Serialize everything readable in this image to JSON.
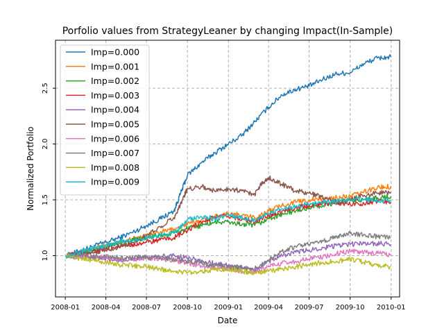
{
  "chart_data": {
    "type": "line",
    "title": "Porfolio values from StrategyLeaner by changing Impact(In-Sample)",
    "xlabel": "Date",
    "ylabel": "Normalized Portfolio",
    "xlim": [
      "2007-12-10",
      "2010-01-20"
    ],
    "ylim": [
      0.63,
      2.93
    ],
    "x_ticks": [
      {
        "date": "2008-01-01",
        "label": "2008-01"
      },
      {
        "date": "2008-04-01",
        "label": "2008-04"
      },
      {
        "date": "2008-07-01",
        "label": "2008-07"
      },
      {
        "date": "2008-10-01",
        "label": "2008-10"
      },
      {
        "date": "2009-01-01",
        "label": "2009-01"
      },
      {
        "date": "2009-04-01",
        "label": "2009-04"
      },
      {
        "date": "2009-07-01",
        "label": "2009-07"
      },
      {
        "date": "2009-10-01",
        "label": "2009-10"
      },
      {
        "date": "2010-01-01",
        "label": "2010-01"
      }
    ],
    "y_ticks": [
      {
        "value": 1.0,
        "label": "1.0"
      },
      {
        "value": 1.5,
        "label": "1.5"
      },
      {
        "value": 2.0,
        "label": "2.0"
      },
      {
        "value": 2.5,
        "label": "2.5"
      }
    ],
    "grid": true,
    "legend_position": "top-left",
    "series": [
      {
        "name": "Imp=0.000",
        "color": "#1f77b4",
        "points": [
          [
            "2008-01-02",
            1.0
          ],
          [
            "2008-02-01",
            1.04
          ],
          [
            "2008-03-01",
            1.08
          ],
          [
            "2008-04-01",
            1.12
          ],
          [
            "2008-05-01",
            1.16
          ],
          [
            "2008-06-01",
            1.21
          ],
          [
            "2008-07-01",
            1.27
          ],
          [
            "2008-08-01",
            1.33
          ],
          [
            "2008-09-01",
            1.4
          ],
          [
            "2008-09-15",
            1.55
          ],
          [
            "2008-10-01",
            1.72
          ],
          [
            "2008-11-01",
            1.83
          ],
          [
            "2008-12-01",
            1.92
          ],
          [
            "2009-01-01",
            2.0
          ],
          [
            "2009-02-01",
            2.08
          ],
          [
            "2009-03-01",
            2.2
          ],
          [
            "2009-04-01",
            2.33
          ],
          [
            "2009-05-01",
            2.44
          ],
          [
            "2009-06-01",
            2.49
          ],
          [
            "2009-07-01",
            2.52
          ],
          [
            "2009-08-01",
            2.58
          ],
          [
            "2009-09-01",
            2.63
          ],
          [
            "2009-10-01",
            2.64
          ],
          [
            "2009-11-01",
            2.72
          ],
          [
            "2009-12-01",
            2.77
          ],
          [
            "2009-12-31",
            2.78
          ]
        ]
      },
      {
        "name": "Imp=0.001",
        "color": "#ff7f0e",
        "points": [
          [
            "2008-01-02",
            1.0
          ],
          [
            "2008-02-01",
            1.03
          ],
          [
            "2008-03-01",
            1.06
          ],
          [
            "2008-04-01",
            1.09
          ],
          [
            "2008-05-01",
            1.12
          ],
          [
            "2008-06-01",
            1.15
          ],
          [
            "2008-07-01",
            1.18
          ],
          [
            "2008-08-01",
            1.21
          ],
          [
            "2008-09-01",
            1.24
          ],
          [
            "2008-10-01",
            1.28
          ],
          [
            "2008-11-01",
            1.32
          ],
          [
            "2008-12-01",
            1.35
          ],
          [
            "2009-01-01",
            1.38
          ],
          [
            "2009-02-01",
            1.36
          ],
          [
            "2009-03-01",
            1.34
          ],
          [
            "2009-04-01",
            1.4
          ],
          [
            "2009-05-01",
            1.45
          ],
          [
            "2009-06-01",
            1.48
          ],
          [
            "2009-07-01",
            1.5
          ],
          [
            "2009-08-01",
            1.51
          ],
          [
            "2009-09-01",
            1.52
          ],
          [
            "2009-10-01",
            1.53
          ],
          [
            "2009-11-01",
            1.57
          ],
          [
            "2009-12-01",
            1.61
          ],
          [
            "2009-12-31",
            1.62
          ]
        ]
      },
      {
        "name": "Imp=0.002",
        "color": "#2ca02c",
        "points": [
          [
            "2008-01-02",
            1.0
          ],
          [
            "2008-02-01",
            1.02
          ],
          [
            "2008-03-01",
            1.05
          ],
          [
            "2008-04-01",
            1.08
          ],
          [
            "2008-05-01",
            1.11
          ],
          [
            "2008-06-01",
            1.14
          ],
          [
            "2008-07-01",
            1.16
          ],
          [
            "2008-08-01",
            1.18
          ],
          [
            "2008-09-01",
            1.2
          ],
          [
            "2008-10-01",
            1.24
          ],
          [
            "2008-11-01",
            1.27
          ],
          [
            "2008-12-01",
            1.3
          ],
          [
            "2009-01-01",
            1.3
          ],
          [
            "2009-02-01",
            1.28
          ],
          [
            "2009-03-01",
            1.27
          ],
          [
            "2009-04-01",
            1.33
          ],
          [
            "2009-05-01",
            1.37
          ],
          [
            "2009-06-01",
            1.4
          ],
          [
            "2009-07-01",
            1.43
          ],
          [
            "2009-08-01",
            1.45
          ],
          [
            "2009-09-01",
            1.47
          ],
          [
            "2009-10-01",
            1.49
          ],
          [
            "2009-11-01",
            1.5
          ],
          [
            "2009-12-01",
            1.52
          ],
          [
            "2009-12-31",
            1.53
          ]
        ]
      },
      {
        "name": "Imp=0.003",
        "color": "#d62728",
        "points": [
          [
            "2008-01-02",
            1.0
          ],
          [
            "2008-02-01",
            1.02
          ],
          [
            "2008-03-01",
            1.04
          ],
          [
            "2008-04-01",
            1.06
          ],
          [
            "2008-05-01",
            1.08
          ],
          [
            "2008-06-01",
            1.1
          ],
          [
            "2008-07-01",
            1.12
          ],
          [
            "2008-08-01",
            1.14
          ],
          [
            "2008-09-01",
            1.16
          ],
          [
            "2008-10-01",
            1.22
          ],
          [
            "2008-11-01",
            1.3
          ],
          [
            "2008-12-01",
            1.35
          ],
          [
            "2009-01-01",
            1.35
          ],
          [
            "2009-02-01",
            1.33
          ],
          [
            "2009-03-01",
            1.3
          ],
          [
            "2009-04-01",
            1.36
          ],
          [
            "2009-05-01",
            1.4
          ],
          [
            "2009-06-01",
            1.43
          ],
          [
            "2009-07-01",
            1.45
          ],
          [
            "2009-08-01",
            1.47
          ],
          [
            "2009-09-01",
            1.47
          ],
          [
            "2009-10-01",
            1.46
          ],
          [
            "2009-11-01",
            1.47
          ],
          [
            "2009-12-01",
            1.49
          ],
          [
            "2009-12-31",
            1.48
          ]
        ]
      },
      {
        "name": "Imp=0.004",
        "color": "#9467bd",
        "points": [
          [
            "2008-01-02",
            1.0
          ],
          [
            "2008-02-01",
            0.99
          ],
          [
            "2008-03-01",
            0.98
          ],
          [
            "2008-04-01",
            0.97
          ],
          [
            "2008-05-01",
            0.96
          ],
          [
            "2008-06-01",
            0.97
          ],
          [
            "2008-07-01",
            0.98
          ],
          [
            "2008-08-01",
            0.99
          ],
          [
            "2008-09-01",
            1.0
          ],
          [
            "2008-10-01",
            0.98
          ],
          [
            "2008-11-01",
            0.95
          ],
          [
            "2008-12-01",
            0.93
          ],
          [
            "2009-01-01",
            0.91
          ],
          [
            "2009-02-01",
            0.89
          ],
          [
            "2009-03-01",
            0.87
          ],
          [
            "2009-04-01",
            0.95
          ],
          [
            "2009-05-01",
            1.0
          ],
          [
            "2009-06-01",
            1.03
          ],
          [
            "2009-07-01",
            1.05
          ],
          [
            "2009-08-01",
            1.07
          ],
          [
            "2009-09-01",
            1.09
          ],
          [
            "2009-10-01",
            1.1
          ],
          [
            "2009-11-01",
            1.11
          ],
          [
            "2009-12-01",
            1.11
          ],
          [
            "2009-12-31",
            1.1
          ]
        ]
      },
      {
        "name": "Imp=0.005",
        "color": "#8c564b",
        "points": [
          [
            "2008-01-02",
            1.0
          ],
          [
            "2008-02-01",
            1.01
          ],
          [
            "2008-03-01",
            1.03
          ],
          [
            "2008-04-01",
            1.05
          ],
          [
            "2008-05-01",
            1.08
          ],
          [
            "2008-06-01",
            1.12
          ],
          [
            "2008-07-01",
            1.18
          ],
          [
            "2008-08-01",
            1.26
          ],
          [
            "2008-09-01",
            1.34
          ],
          [
            "2008-09-20",
            1.5
          ],
          [
            "2008-10-01",
            1.6
          ],
          [
            "2008-11-01",
            1.62
          ],
          [
            "2008-12-01",
            1.58
          ],
          [
            "2009-01-01",
            1.6
          ],
          [
            "2009-02-01",
            1.58
          ],
          [
            "2009-03-01",
            1.55
          ],
          [
            "2009-03-15",
            1.64
          ],
          [
            "2009-04-01",
            1.7
          ],
          [
            "2009-05-01",
            1.64
          ],
          [
            "2009-06-01",
            1.58
          ],
          [
            "2009-07-01",
            1.56
          ],
          [
            "2009-08-01",
            1.52
          ],
          [
            "2009-09-01",
            1.48
          ],
          [
            "2009-10-01",
            1.5
          ],
          [
            "2009-11-01",
            1.54
          ],
          [
            "2009-12-01",
            1.56
          ],
          [
            "2009-12-31",
            1.57
          ]
        ]
      },
      {
        "name": "Imp=0.006",
        "color": "#e377c2",
        "points": [
          [
            "2008-01-02",
            1.0
          ],
          [
            "2008-02-01",
            0.99
          ],
          [
            "2008-03-01",
            0.99
          ],
          [
            "2008-04-01",
            0.98
          ],
          [
            "2008-05-01",
            0.97
          ],
          [
            "2008-06-01",
            0.97
          ],
          [
            "2008-07-01",
            0.98
          ],
          [
            "2008-08-01",
            0.97
          ],
          [
            "2008-09-01",
            0.96
          ],
          [
            "2008-10-01",
            0.93
          ],
          [
            "2008-11-01",
            0.91
          ],
          [
            "2008-12-01",
            0.89
          ],
          [
            "2009-01-01",
            0.88
          ],
          [
            "2009-02-01",
            0.86
          ],
          [
            "2009-03-01",
            0.85
          ],
          [
            "2009-04-01",
            0.9
          ],
          [
            "2009-05-01",
            0.93
          ],
          [
            "2009-06-01",
            0.95
          ],
          [
            "2009-07-01",
            0.97
          ],
          [
            "2009-08-01",
            0.99
          ],
          [
            "2009-09-01",
            1.02
          ],
          [
            "2009-10-01",
            1.04
          ],
          [
            "2009-11-01",
            1.03
          ],
          [
            "2009-12-01",
            1.02
          ],
          [
            "2009-12-31",
            1.01
          ]
        ]
      },
      {
        "name": "Imp=0.007",
        "color": "#7f7f7f",
        "points": [
          [
            "2008-01-02",
            1.0
          ],
          [
            "2008-02-01",
            1.0
          ],
          [
            "2008-03-01",
            0.99
          ],
          [
            "2008-04-01",
            0.99
          ],
          [
            "2008-05-01",
            0.98
          ],
          [
            "2008-06-01",
            0.98
          ],
          [
            "2008-07-01",
            0.99
          ],
          [
            "2008-08-01",
            0.98
          ],
          [
            "2008-09-01",
            0.97
          ],
          [
            "2008-10-01",
            0.95
          ],
          [
            "2008-11-01",
            0.93
          ],
          [
            "2008-12-01",
            0.91
          ],
          [
            "2009-01-01",
            0.9
          ],
          [
            "2009-02-01",
            0.89
          ],
          [
            "2009-03-01",
            0.88
          ],
          [
            "2009-04-01",
            0.96
          ],
          [
            "2009-05-01",
            1.04
          ],
          [
            "2009-06-01",
            1.08
          ],
          [
            "2009-07-01",
            1.1
          ],
          [
            "2009-08-01",
            1.13
          ],
          [
            "2009-09-01",
            1.17
          ],
          [
            "2009-10-01",
            1.2
          ],
          [
            "2009-11-01",
            1.19
          ],
          [
            "2009-12-01",
            1.17
          ],
          [
            "2009-12-31",
            1.16
          ]
        ]
      },
      {
        "name": "Imp=0.008",
        "color": "#bcbd22",
        "points": [
          [
            "2008-01-02",
            1.0
          ],
          [
            "2008-02-01",
            0.98
          ],
          [
            "2008-03-01",
            0.96
          ],
          [
            "2008-04-01",
            0.94
          ],
          [
            "2008-05-01",
            0.92
          ],
          [
            "2008-06-01",
            0.91
          ],
          [
            "2008-07-01",
            0.9
          ],
          [
            "2008-08-01",
            0.88
          ],
          [
            "2008-09-01",
            0.86
          ],
          [
            "2008-10-01",
            0.85
          ],
          [
            "2008-11-01",
            0.86
          ],
          [
            "2008-12-01",
            0.87
          ],
          [
            "2009-01-01",
            0.88
          ],
          [
            "2009-02-01",
            0.86
          ],
          [
            "2009-03-01",
            0.84
          ],
          [
            "2009-04-01",
            0.86
          ],
          [
            "2009-05-01",
            0.88
          ],
          [
            "2009-06-01",
            0.9
          ],
          [
            "2009-07-01",
            0.92
          ],
          [
            "2009-08-01",
            0.94
          ],
          [
            "2009-09-01",
            0.95
          ],
          [
            "2009-10-01",
            0.97
          ],
          [
            "2009-11-01",
            0.94
          ],
          [
            "2009-12-01",
            0.91
          ],
          [
            "2009-12-31",
            0.9
          ]
        ]
      },
      {
        "name": "Imp=0.009",
        "color": "#17becf",
        "points": [
          [
            "2008-01-02",
            1.0
          ],
          [
            "2008-02-01",
            1.03
          ],
          [
            "2008-03-01",
            1.06
          ],
          [
            "2008-04-01",
            1.09
          ],
          [
            "2008-05-01",
            1.12
          ],
          [
            "2008-06-01",
            1.14
          ],
          [
            "2008-07-01",
            1.16
          ],
          [
            "2008-08-01",
            1.18
          ],
          [
            "2008-09-01",
            1.2
          ],
          [
            "2008-10-01",
            1.32
          ],
          [
            "2008-11-01",
            1.35
          ],
          [
            "2008-12-01",
            1.33
          ],
          [
            "2009-01-01",
            1.36
          ],
          [
            "2009-02-01",
            1.34
          ],
          [
            "2009-03-01",
            1.32
          ],
          [
            "2009-04-01",
            1.38
          ],
          [
            "2009-05-01",
            1.42
          ],
          [
            "2009-06-01",
            1.44
          ],
          [
            "2009-07-01",
            1.46
          ],
          [
            "2009-08-01",
            1.48
          ],
          [
            "2009-09-01",
            1.49
          ],
          [
            "2009-10-01",
            1.5
          ],
          [
            "2009-11-01",
            1.5
          ],
          [
            "2009-12-01",
            1.49
          ],
          [
            "2009-12-31",
            1.49
          ]
        ]
      }
    ]
  }
}
